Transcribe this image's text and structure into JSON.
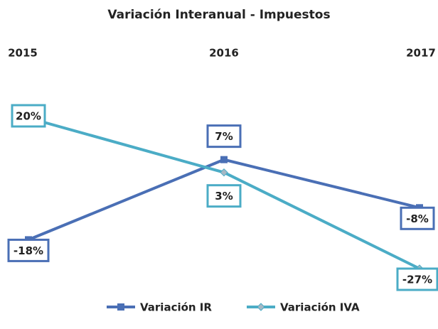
{
  "chart_data": {
    "type": "line",
    "title": "Variación Interanual - Impuestos",
    "categories": [
      "2015",
      "2016",
      "2017"
    ],
    "series": [
      {
        "name": "Variación IR",
        "color": "#4a6fb5",
        "values": [
          -18,
          7,
          -8
        ],
        "value_labels": [
          "-18%",
          "7%",
          "-8%"
        ]
      },
      {
        "name": "Variación IVA",
        "color": "#4bacc6",
        "values": [
          20,
          3,
          -27
        ],
        "value_labels": [
          "20%",
          "3%",
          "-27%"
        ]
      }
    ],
    "legend": "bottom"
  }
}
